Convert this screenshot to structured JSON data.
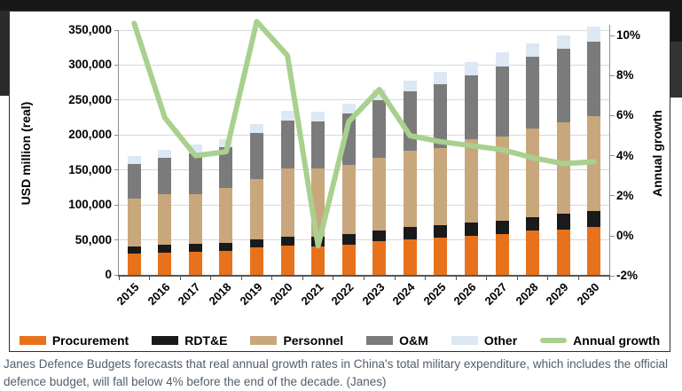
{
  "page": {
    "caption": "Janes Defence Budgets forecasts that real annual growth rates in China's total military expenditure, which includes the official defence budget, will fall below 4% before the end of the decade. (Janes)"
  },
  "chart_data": {
    "type": "bar",
    "subtype": "stacked-bar-with-line-overlay",
    "categories": [
      "2015",
      "2016",
      "2017",
      "2018",
      "2019",
      "2020",
      "2021",
      "2022",
      "2023",
      "2024",
      "2025",
      "2026",
      "2027",
      "2028",
      "2029",
      "2030"
    ],
    "series": [
      {
        "name": "Procurement",
        "type": "bar",
        "axis": "left",
        "color": "#E8721C",
        "values": [
          30000,
          32000,
          33000,
          34000,
          39000,
          42000,
          41000,
          43000,
          48000,
          51000,
          53000,
          56000,
          58000,
          63000,
          65000,
          68000
        ]
      },
      {
        "name": "RDT&E",
        "type": "bar",
        "axis": "left",
        "color": "#1A1A1A",
        "values": [
          11000,
          11000,
          12000,
          12000,
          12000,
          13000,
          14000,
          15000,
          16000,
          17000,
          18000,
          19000,
          20000,
          20000,
          22000,
          23000
        ]
      },
      {
        "name": "Personnel",
        "type": "bar",
        "axis": "left",
        "color": "#C9A77C",
        "values": [
          68000,
          72000,
          71000,
          78000,
          86000,
          97000,
          97000,
          99000,
          104000,
          109000,
          110000,
          119000,
          120000,
          126000,
          131000,
          136000
        ]
      },
      {
        "name": "O&M",
        "type": "bar",
        "axis": "left",
        "color": "#7B7B7B",
        "values": [
          49000,
          53000,
          58000,
          58000,
          66000,
          69000,
          68000,
          74000,
          82000,
          85000,
          92000,
          91000,
          100000,
          103000,
          105000,
          107000
        ]
      },
      {
        "name": "Other",
        "type": "bar",
        "axis": "left",
        "color": "#DCE8F4",
        "values": [
          12000,
          11000,
          12000,
          12000,
          12000,
          13000,
          13000,
          14000,
          15000,
          16000,
          18000,
          19000,
          20000,
          19000,
          20000,
          21000
        ]
      },
      {
        "name": "Annual growth",
        "type": "line",
        "axis": "right",
        "color": "#A9D08E",
        "values": [
          10.6,
          5.9,
          4.0,
          4.2,
          10.7,
          9.0,
          -0.5,
          5.7,
          7.3,
          5.0,
          4.7,
          4.5,
          4.3,
          3.9,
          3.6,
          3.7
        ]
      }
    ],
    "left_axis": {
      "title": "USD million (real)",
      "min": 0,
      "max": 350000,
      "tick_labels": [
        "350,000",
        "300,000",
        "250,000",
        "200,000",
        "150,000",
        "100,000",
        "50,000",
        "0"
      ]
    },
    "right_axis": {
      "title": "Annual growth",
      "min": -2,
      "max": 10,
      "tick_labels": [
        "10%",
        "8%",
        "6%",
        "4%",
        "2%",
        "0%",
        "-2%"
      ]
    },
    "grid": "horizontal",
    "legend_position": "bottom",
    "legend": [
      {
        "label": "Procurement",
        "color": "#E8721C",
        "shape": "rect"
      },
      {
        "label": "RDT&E",
        "color": "#1A1A1A",
        "shape": "rect"
      },
      {
        "label": "Personnel",
        "color": "#C9A77C",
        "shape": "rect"
      },
      {
        "label": "O&M",
        "color": "#7B7B7B",
        "shape": "rect"
      },
      {
        "label": "Other",
        "color": "#DCE8F4",
        "shape": "rect"
      },
      {
        "label": "Annual growth",
        "color": "#A9D08E",
        "shape": "line"
      }
    ]
  }
}
